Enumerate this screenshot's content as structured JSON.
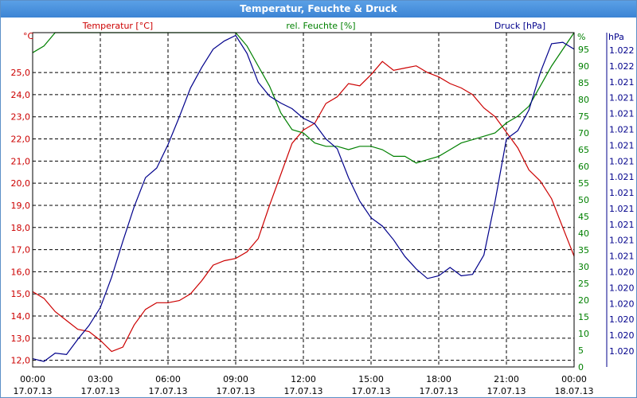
{
  "window": {
    "title": "Temperatur, Feuchte & Druck"
  },
  "colors": {
    "temperature": "#cc0000",
    "humidity": "#008000",
    "pressure": "#00008b",
    "grid": "#000000",
    "titlebar": "#3c84d4"
  },
  "chart_data": {
    "type": "line",
    "grid": true,
    "x_ticks": [
      {
        "time": "00:00",
        "date": "17.07.13"
      },
      {
        "time": "03:00",
        "date": "17.07.13"
      },
      {
        "time": "06:00",
        "date": "17.07.13"
      },
      {
        "time": "09:00",
        "date": "17.07.13"
      },
      {
        "time": "12:00",
        "date": "17.07.13"
      },
      {
        "time": "15:00",
        "date": "17.07.13"
      },
      {
        "time": "18:00",
        "date": "17.07.13"
      },
      {
        "time": "21:00",
        "date": "17.07.13"
      },
      {
        "time": "00:00",
        "date": "18.07.13"
      }
    ],
    "axes": {
      "temperature": {
        "label": "Temperatur [°C]",
        "unit": "°C",
        "range": [
          11.7,
          26.8
        ],
        "ticks": [
          "12,0",
          "13,0",
          "14,0",
          "15,0",
          "16,0",
          "17,0",
          "18,0",
          "19,0",
          "20,0",
          "21,0",
          "22,0",
          "23,0",
          "24,0",
          "25,0"
        ]
      },
      "humidity": {
        "label": "rel. Feuchte [%]",
        "unit": "%",
        "range": [
          0,
          100
        ],
        "ticks": [
          "0",
          "5",
          "10",
          "15",
          "20",
          "25",
          "30",
          "35",
          "40",
          "45",
          "50",
          "55",
          "60",
          "65",
          "70",
          "75",
          "80",
          "85",
          "90",
          "95"
        ]
      },
      "pressure": {
        "label": "Druck [hPa]",
        "unit": "hPa",
        "range": [
          1.01994,
          1.02236
        ],
        "ticks": [
          "1.020",
          "1.020",
          "1.020",
          "1.020",
          "1.020",
          "1.020",
          "1.021",
          "1.021",
          "1.021",
          "1.021",
          "1.021",
          "1.021",
          "1.021",
          "1.021",
          "1.021",
          "1.021",
          "1.021",
          "1.021",
          "1.022",
          "1.022"
        ]
      }
    },
    "series": [
      {
        "name": "Temperatur [°C]",
        "axis": "temperature",
        "x_hours": [
          0,
          0.5,
          1,
          1.5,
          2,
          2.5,
          3,
          3.5,
          4,
          4.5,
          5,
          5.5,
          6,
          6.5,
          7,
          7.5,
          8,
          8.5,
          9,
          9.5,
          10,
          10.5,
          11,
          11.5,
          12,
          12.5,
          13,
          13.5,
          14,
          14.5,
          15,
          15.5,
          16,
          16.5,
          17,
          17.5,
          18,
          18.5,
          19,
          19.5,
          20,
          20.5,
          21,
          21.5,
          22,
          22.5,
          23,
          23.5,
          24
        ],
        "values": [
          15.1,
          14.8,
          14.2,
          13.8,
          13.4,
          13.3,
          12.9,
          12.4,
          12.6,
          13.6,
          14.3,
          14.6,
          14.6,
          14.7,
          15.0,
          15.6,
          16.3,
          16.5,
          16.6,
          16.9,
          17.5,
          19.0,
          20.4,
          21.8,
          22.4,
          22.7,
          23.6,
          23.9,
          24.5,
          24.4,
          24.9,
          25.5,
          25.1,
          25.2,
          25.3,
          25.0,
          24.8,
          24.5,
          24.3,
          24.0,
          23.4,
          23.0,
          22.3,
          21.6,
          20.6,
          20.1,
          19.3,
          18.0,
          16.7
        ]
      },
      {
        "name": "rel. Feuchte [%]",
        "axis": "humidity",
        "x_hours": [
          0,
          0.5,
          1,
          9,
          9.5,
          10,
          10.5,
          11,
          11.5,
          12,
          12.5,
          13,
          13.5,
          14,
          14.5,
          15,
          15.5,
          16,
          16.5,
          17,
          17.5,
          18,
          18.5,
          19,
          19.5,
          20,
          20.5,
          21,
          21.5,
          22,
          22.5,
          23,
          23.5,
          24
        ],
        "values": [
          94,
          96,
          100,
          100,
          96,
          90,
          84,
          76,
          71,
          70,
          67,
          66,
          66,
          65,
          66,
          66,
          65,
          63,
          63,
          61,
          62,
          63,
          65,
          67,
          68,
          69,
          70,
          73,
          75,
          78,
          84,
          90,
          95,
          100
        ]
      },
      {
        "name": "Druck [hPa]",
        "axis": "pressure",
        "x_hours": [
          0,
          0.5,
          1,
          1.5,
          2,
          2.5,
          3,
          3.5,
          4,
          4.5,
          5,
          5.5,
          6,
          6.5,
          7,
          7.5,
          8,
          8.5,
          9,
          9.5,
          10,
          10.5,
          11,
          11.5,
          12,
          12.5,
          13,
          13.5,
          14,
          14.5,
          15,
          15.5,
          16,
          16.5,
          17,
          17.5,
          18,
          18.5,
          19,
          19.5,
          20,
          20.5,
          21,
          21.5,
          22,
          22.5,
          23,
          23.5,
          24
        ],
        "values": [
          1.02,
          1.01998,
          1.02004,
          1.02003,
          1.02014,
          1.02024,
          1.02037,
          1.02059,
          1.02085,
          1.0211,
          1.02131,
          1.02138,
          1.02155,
          1.02175,
          1.02196,
          1.02211,
          1.02224,
          1.0223,
          1.02234,
          1.02221,
          1.022,
          1.0219,
          1.02185,
          1.02181,
          1.02174,
          1.0217,
          1.02159,
          1.02152,
          1.02131,
          1.02114,
          1.02102,
          1.02096,
          1.02086,
          1.02074,
          1.02065,
          1.02058,
          1.0206,
          1.02066,
          1.0206,
          1.02061,
          1.02075,
          1.02114,
          1.02159,
          1.02165,
          1.0218,
          1.02207,
          1.02228,
          1.02229,
          1.02224
        ]
      }
    ]
  }
}
